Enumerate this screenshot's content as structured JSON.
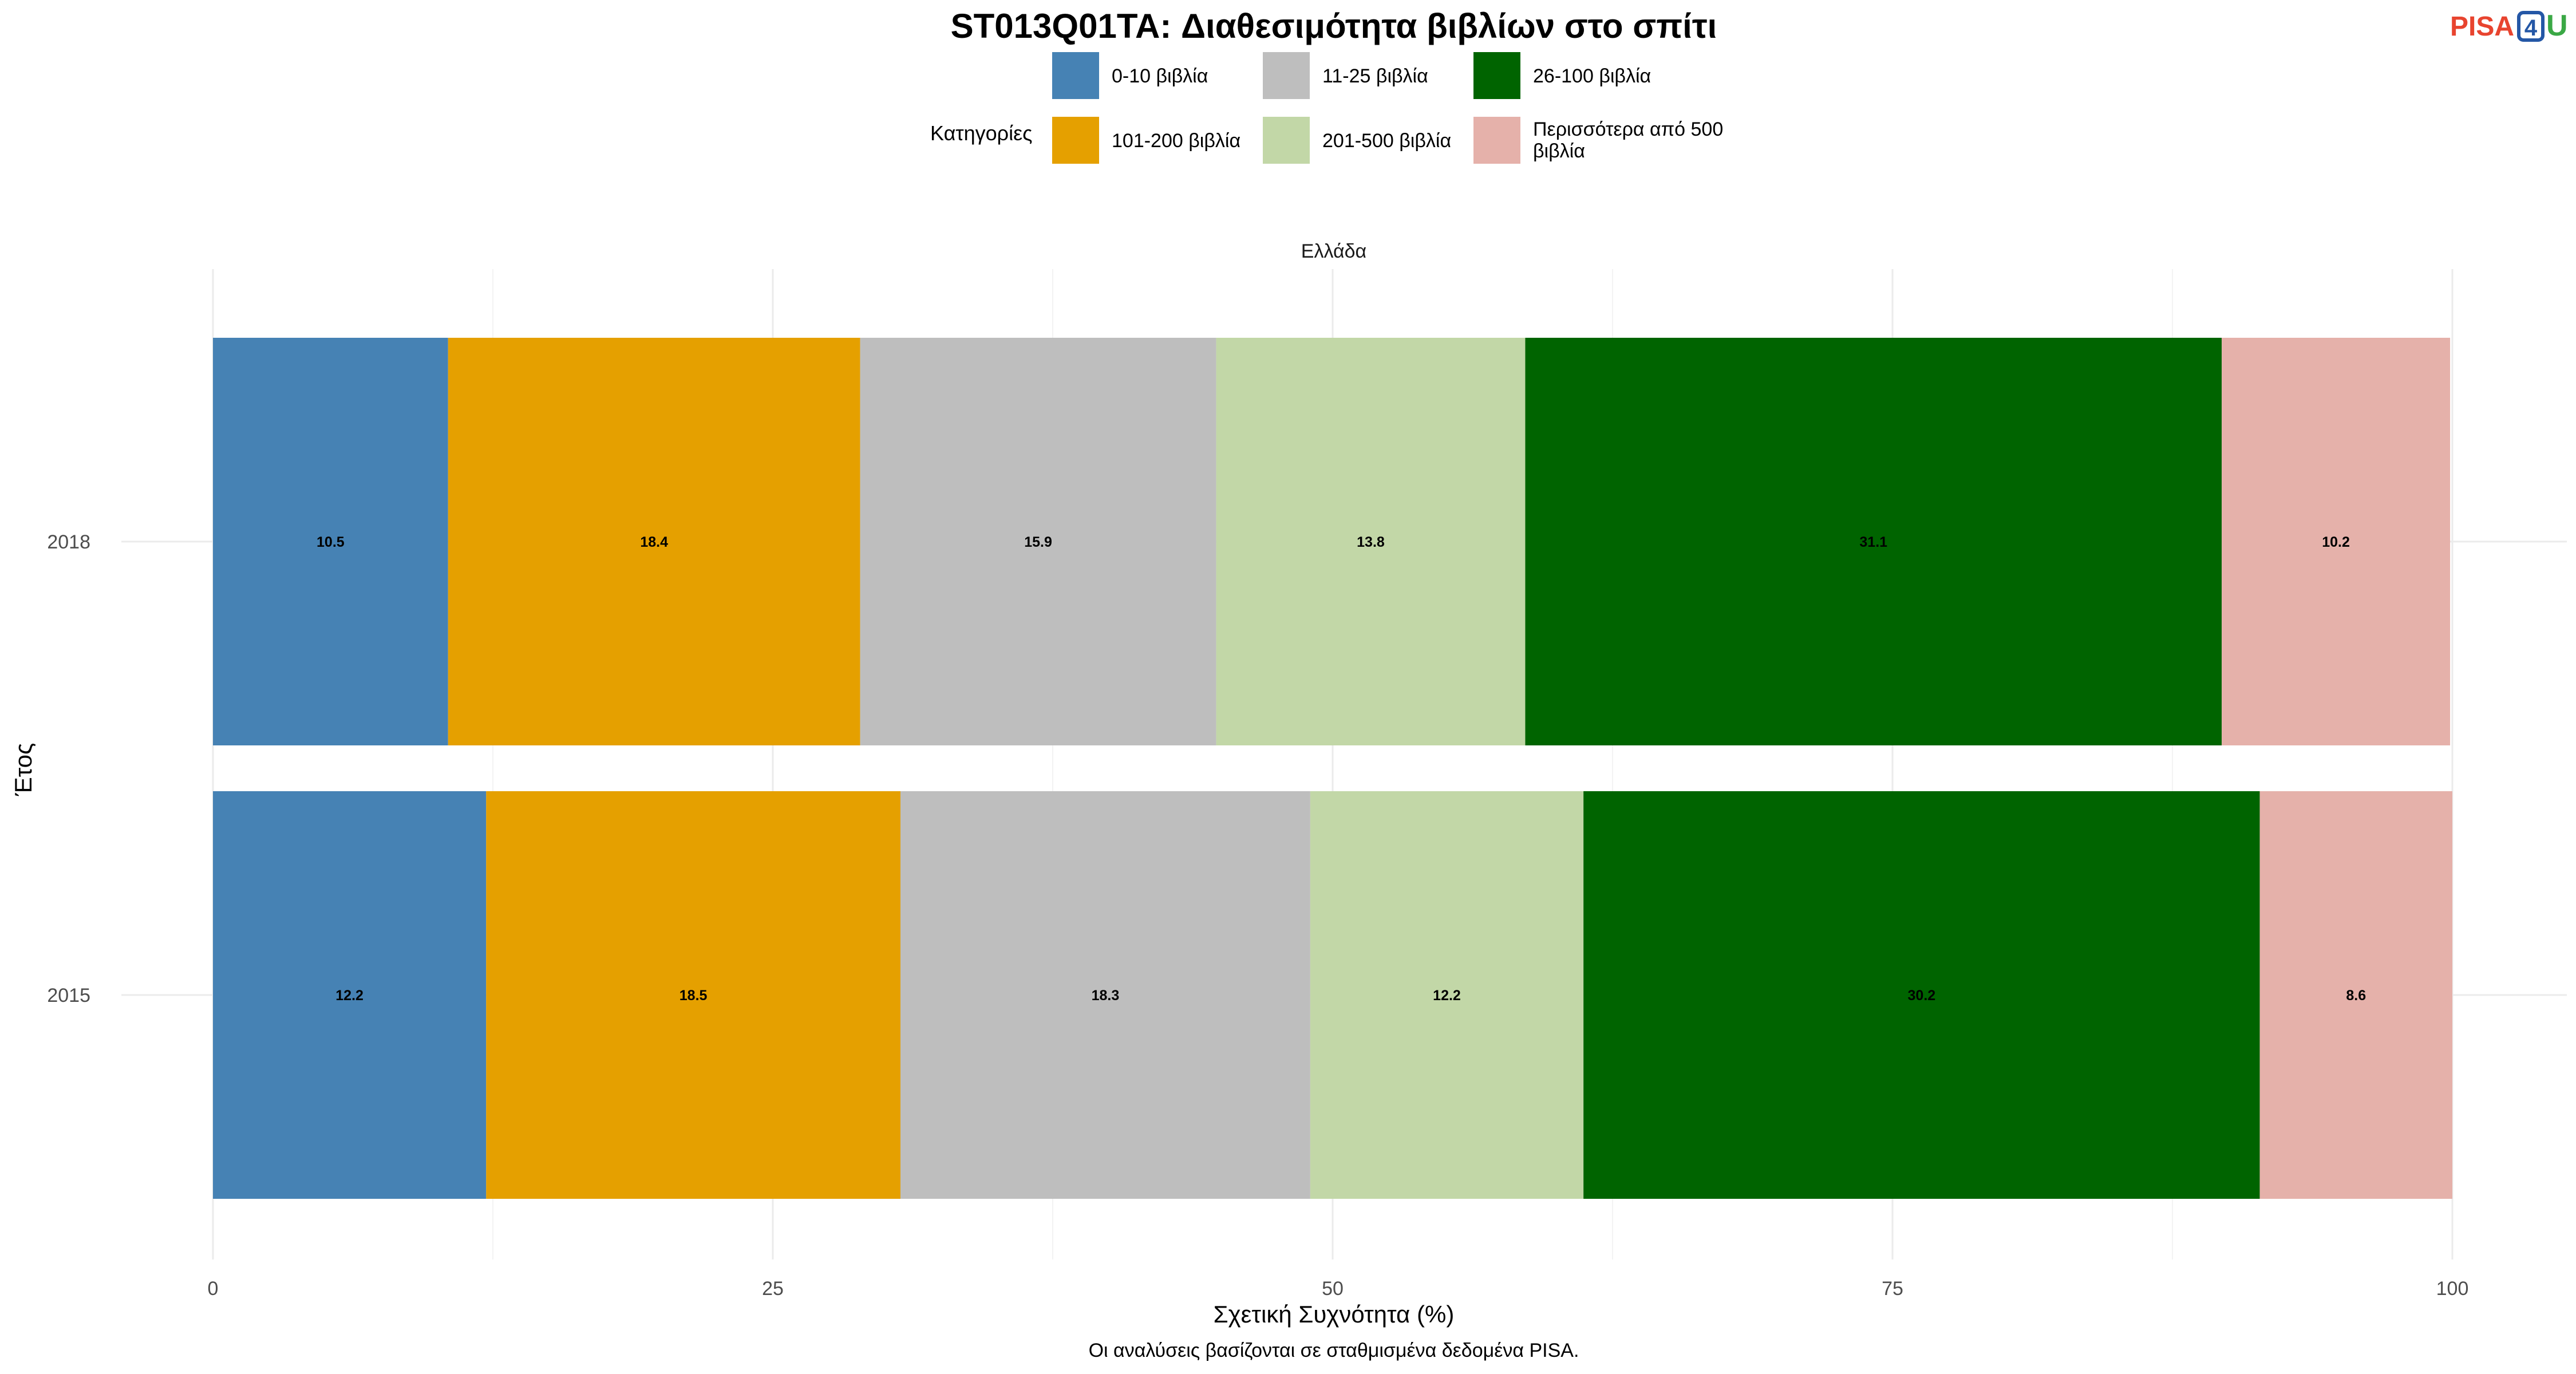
{
  "logo": {
    "part1": "PISA",
    "part2": "4",
    "part3": "U",
    "colors": {
      "part1": "#e8442f",
      "part2": "#2457a6",
      "part3": "#3aa845"
    }
  },
  "chart_data": {
    "type": "bar",
    "orientation": "horizontal",
    "stacked": true,
    "title": "ST013Q01TA: Διαθεσιμότητα βιβλίων στο σπίτι",
    "facet_label": "Ελλάδα",
    "xlabel": "Σχετική Συχνότητα (%)",
    "ylabel": "Έτος",
    "caption": "Οι αναλύσεις βασίζονται σε σταθμισμένα δεδομένα PISA.",
    "xlim": [
      0,
      100
    ],
    "x_ticks": [
      0,
      25,
      50,
      75,
      100
    ],
    "grid": true,
    "legend": {
      "title": "Κατηγορίες",
      "position": "top",
      "columns": 3,
      "items": [
        "0-10 βιβλία",
        "101-200 βιβλία",
        "11-25 βιβλία",
        "201-500 βιβλία",
        "26-100 βιβλία",
        "Περισσότερα από 500 βιβλία"
      ]
    },
    "categories": [
      "2018",
      "2015"
    ],
    "series": [
      {
        "name": "0-10 βιβλία",
        "color": "#4682b4",
        "values": [
          10.5,
          12.2
        ]
      },
      {
        "name": "101-200 βιβλία",
        "color": "#e5a000",
        "values": [
          18.4,
          18.5
        ]
      },
      {
        "name": "11-25 βιβλία",
        "color": "#bebebe",
        "values": [
          15.9,
          18.3
        ]
      },
      {
        "name": "201-500 βιβλία",
        "color": "#c2d7a7",
        "values": [
          13.8,
          12.2
        ]
      },
      {
        "name": "26-100 βιβλία",
        "color": "#006400",
        "values": [
          31.1,
          30.2
        ]
      },
      {
        "name": "Περισσότερα από 500 βιβλία",
        "color": "#e5b1aa",
        "values": [
          10.2,
          8.6
        ]
      }
    ]
  }
}
